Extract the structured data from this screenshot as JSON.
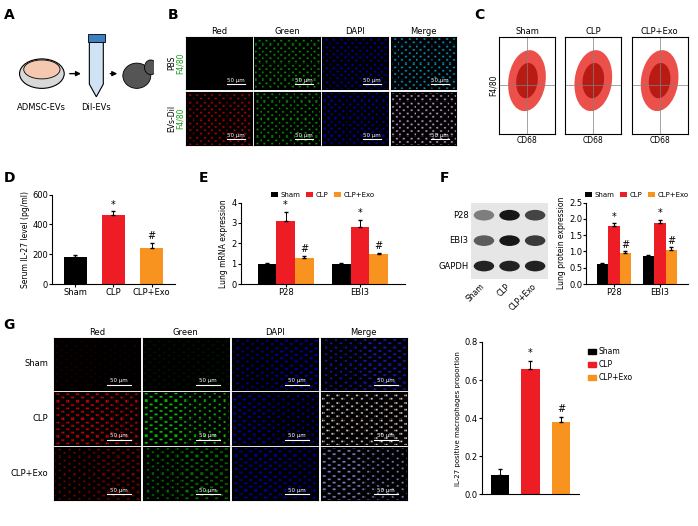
{
  "panels": {
    "A": {
      "panel": "A",
      "dish_label": "ADMSC-EVs",
      "tube_label": "DiI-EVs"
    },
    "B": {
      "panel": "B",
      "columns": [
        "Red",
        "Green",
        "DAPI",
        "Merge"
      ],
      "rows": [
        {
          "label": "PBS",
          "stain": "F4/80"
        },
        {
          "label": "EVs-DiI",
          "stain": "F4/80"
        }
      ],
      "scale_bar": "50 μm"
    },
    "C": {
      "panel": "C",
      "plots": [
        "Sham",
        "CLP",
        "CLP+Exo"
      ],
      "xlabel": "CD68",
      "ylabel": "F4/80"
    },
    "F_blot": {
      "bands": [
        "P28",
        "EBI3",
        "GAPDH"
      ],
      "lanes": [
        "Sham",
        "CLP",
        "CLP+Exo"
      ]
    },
    "G_images": {
      "columns": [
        "Red",
        "Green",
        "DAPI",
        "Merge"
      ],
      "rows": [
        "Sham",
        "CLP",
        "CLP+Exo"
      ],
      "scale_bar": "50 μm"
    }
  },
  "chart_data": [
    {
      "panel": "D",
      "type": "bar",
      "ylabel": "Serum IL-27 level (pg/ml)",
      "categories": [
        "Sham",
        "CLP",
        "CLP+Exo"
      ],
      "values": [
        180,
        465,
        245
      ],
      "errors": [
        15,
        22,
        30
      ],
      "annotations": [
        null,
        "*",
        "#"
      ],
      "colors": [
        "#000000",
        "#ee1c25",
        "#f7931e"
      ],
      "ylim": [
        0,
        600
      ],
      "yticks": [
        0,
        200,
        400,
        600
      ]
    },
    {
      "panel": "E",
      "type": "bar",
      "ylabel": "Lung mRNA expression",
      "categories": [
        "P28",
        "EBI3"
      ],
      "series": [
        {
          "name": "Sham",
          "color": "#000000",
          "values": [
            1.0,
            1.0
          ],
          "errors": [
            0.03,
            0.03
          ],
          "annotations": [
            null,
            null
          ]
        },
        {
          "name": "CLP",
          "color": "#ee1c25",
          "values": [
            3.1,
            2.8
          ],
          "errors": [
            0.45,
            0.35
          ],
          "annotations": [
            "*",
            "*"
          ]
        },
        {
          "name": "CLP+Exo",
          "color": "#f7931e",
          "values": [
            1.3,
            1.45
          ],
          "errors": [
            0.1,
            0.08
          ],
          "annotations": [
            "#",
            "#"
          ]
        }
      ],
      "ylim": [
        0,
        4
      ],
      "yticks": [
        0,
        1,
        2,
        3,
        4
      ],
      "legend": "above"
    },
    {
      "panel": "F",
      "type": "bar",
      "ylabel": "Lung protein expression",
      "categories": [
        "P28",
        "EBI3"
      ],
      "series": [
        {
          "name": "Sham",
          "color": "#000000",
          "values": [
            0.6,
            0.85
          ],
          "errors": [
            0.05,
            0.05
          ],
          "annotations": [
            null,
            null
          ]
        },
        {
          "name": "CLP",
          "color": "#ee1c25",
          "values": [
            1.78,
            1.88
          ],
          "errors": [
            0.08,
            0.08
          ],
          "annotations": [
            "*",
            "*"
          ]
        },
        {
          "name": "CLP+Exo",
          "color": "#f7931e",
          "values": [
            0.95,
            1.05
          ],
          "errors": [
            0.05,
            0.08
          ],
          "annotations": [
            "#",
            "#"
          ]
        }
      ],
      "ylim": [
        0,
        2.5
      ],
      "yticks": [
        {
          "value": 0,
          "label": "0.0"
        },
        0.5,
        {
          "value": 1,
          "label": "1.0"
        },
        1.5,
        {
          "value": 2,
          "label": "2.0"
        },
        2.5
      ],
      "legend": "above"
    },
    {
      "panel": "G",
      "type": "bar",
      "ylabel": "IL-27 positive macrophages proportion",
      "categories": [
        "Sham",
        "CLP",
        "CLP+Exo"
      ],
      "values": [
        0.1,
        0.66,
        0.38
      ],
      "errors": [
        0.035,
        0.04,
        0.025
      ],
      "annotations": [
        null,
        "*",
        "#"
      ],
      "colors": [
        "#000000",
        "#ee1c25",
        "#f7931e"
      ],
      "ylim": [
        0,
        0.8
      ],
      "yticks": [
        {
          "value": 0,
          "label": "0.0"
        },
        0.2,
        0.4,
        0.6,
        0.8
      ],
      "tick_labels": "y",
      "legend": "right"
    }
  ]
}
